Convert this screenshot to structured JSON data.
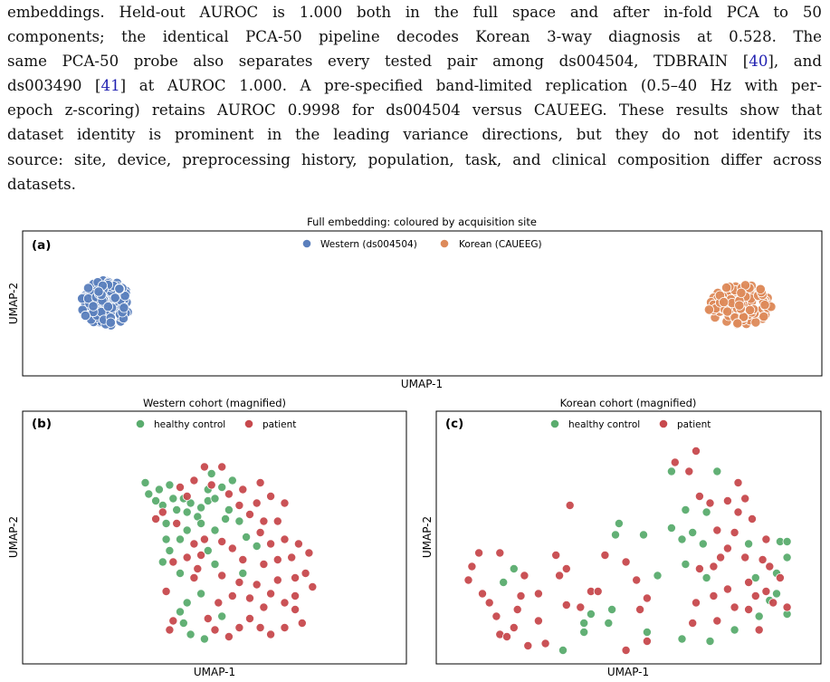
{
  "paragraph": {
    "lines": [
      [
        "embeddings.  Held-out AUROC is 1.000 both in the full space and after in-fold PCA to 50"
      ],
      [
        "components; the identical PCA-50 pipeline decodes Korean 3-way diagnosis at 0.528.  The"
      ],
      [
        "same PCA-50 probe also separates every tested pair among ds004504, TDBRAIN [",
        {
          "cite": "40"
        },
        "], and"
      ],
      [
        "ds003490 [",
        {
          "cite": "41"
        },
        "] at AUROC 1.000. A pre-specified band-limited replication (0.5–40 Hz with per-"
      ],
      [
        "epoch z-scoring) retains AUROC 0.9998 for ds004504 versus CAUEEG. These results show that"
      ],
      [
        "dataset identity is prominent in the leading variance directions, but they do not identify its"
      ],
      [
        "source: site, device, preprocessing history, population, task, and clinical composition differ across"
      ],
      [
        "datasets."
      ]
    ]
  },
  "colors": {
    "western": "#5b7fbd",
    "korean": "#dd8a5a",
    "healthy": "#5aac6e",
    "patient": "#c7494d"
  },
  "figure": {
    "panel_a": {
      "title": "Full embedding: coloured by acquisition site",
      "tag": "(a)",
      "xlabel": "UMAP-1",
      "ylabel": "UMAP-2",
      "legend": [
        "Western (ds004504)",
        "Korean (CAUEEG)"
      ]
    },
    "panel_b": {
      "title": "Western cohort (magnified)",
      "tag": "(b)",
      "xlabel": "UMAP-1",
      "ylabel": "UMAP-2",
      "legend": [
        "healthy control",
        "patient"
      ]
    },
    "panel_c": {
      "title": "Korean cohort (magnified)",
      "tag": "(c)",
      "xlabel": "UMAP-1",
      "ylabel": "UMAP-2",
      "legend": [
        "healthy control",
        "patient"
      ]
    }
  },
  "chart_data": [
    {
      "type": "scatter",
      "title": "Full embedding: coloured by acquisition site",
      "xlabel": "UMAP-1",
      "ylabel": "UMAP-2",
      "legend_position": "top-center",
      "grid": false,
      "xlim": [
        0,
        100
      ],
      "ylim": [
        0,
        100
      ],
      "series": [
        {
          "name": "Western (ds004504)",
          "color": "western",
          "center": [
            8,
            50
          ],
          "spread": [
            3.2,
            20
          ],
          "count": 140,
          "seed": 7
        },
        {
          "name": "Korean (CAUEEG)",
          "color": "korean",
          "center": [
            92,
            49
          ],
          "spread": [
            4.2,
            18
          ],
          "count": 140,
          "seed": 13
        }
      ]
    },
    {
      "type": "scatter",
      "title": "Western cohort (magnified)",
      "xlabel": "UMAP-1",
      "ylabel": "UMAP-2",
      "legend_position": "top-center",
      "grid": false,
      "xlim": [
        0,
        100
      ],
      "ylim": [
        0,
        100
      ],
      "series": [
        {
          "name": "healthy control",
          "color": "healthy",
          "points": [
            [
              49,
              82
            ],
            [
              55,
              79
            ],
            [
              30,
              78
            ],
            [
              34,
              75
            ],
            [
              37,
              77
            ],
            [
              31,
              73
            ],
            [
              33,
              70
            ],
            [
              38,
              71
            ],
            [
              35,
              68
            ],
            [
              39,
              66
            ],
            [
              41,
              71
            ],
            [
              43,
              69
            ],
            [
              42,
              65
            ],
            [
              46,
              67
            ],
            [
              45,
              63
            ],
            [
              48,
              70
            ],
            [
              48,
              75
            ],
            [
              52,
              76
            ],
            [
              50,
              71
            ],
            [
              54,
              66
            ],
            [
              53,
              62
            ],
            [
              46,
              60
            ],
            [
              50,
              57
            ],
            [
              42,
              57
            ],
            [
              40,
              53
            ],
            [
              36,
              60
            ],
            [
              36,
              53
            ],
            [
              37,
              48
            ],
            [
              35,
              43
            ],
            [
              40,
              38
            ],
            [
              48,
              48
            ],
            [
              50,
              42
            ],
            [
              46,
              29
            ],
            [
              42,
              25
            ],
            [
              40,
              21
            ],
            [
              41,
              16
            ],
            [
              43,
              11
            ],
            [
              47,
              9
            ],
            [
              52,
              19
            ],
            [
              57,
              61
            ],
            [
              59,
              54
            ],
            [
              62,
              50
            ],
            [
              58,
              38
            ]
          ]
        },
        {
          "name": "patient",
          "color": "patient",
          "points": [
            [
              47,
              85
            ],
            [
              52,
              85
            ],
            [
              44,
              79
            ],
            [
              49,
              77
            ],
            [
              54,
              73
            ],
            [
              58,
              75
            ],
            [
              63,
              78
            ],
            [
              66,
              72
            ],
            [
              70,
              69
            ],
            [
              62,
              69
            ],
            [
              57,
              68
            ],
            [
              60,
              64
            ],
            [
              64,
              61
            ],
            [
              68,
              61
            ],
            [
              63,
              56
            ],
            [
              66,
              51
            ],
            [
              70,
              53
            ],
            [
              74,
              51
            ],
            [
              77,
              47
            ],
            [
              72,
              45
            ],
            [
              68,
              44
            ],
            [
              64,
              42
            ],
            [
              58,
              44
            ],
            [
              55,
              49
            ],
            [
              52,
              52
            ],
            [
              47,
              53
            ],
            [
              44,
              51
            ],
            [
              42,
              45
            ],
            [
              38,
              43
            ],
            [
              45,
              40
            ],
            [
              52,
              37
            ],
            [
              57,
              34
            ],
            [
              62,
              33
            ],
            [
              68,
              35
            ],
            [
              73,
              36
            ],
            [
              76,
              38
            ],
            [
              78,
              32
            ],
            [
              73,
              28
            ],
            [
              70,
              25
            ],
            [
              73,
              22
            ],
            [
              75,
              16
            ],
            [
              70,
              14
            ],
            [
              66,
              11
            ],
            [
              63,
              14
            ],
            [
              60,
              18
            ],
            [
              57,
              14
            ],
            [
              54,
              10
            ],
            [
              50,
              13
            ],
            [
              48,
              18
            ],
            [
              51,
              25
            ],
            [
              55,
              28
            ],
            [
              60,
              27
            ],
            [
              64,
              23
            ],
            [
              66,
              29
            ],
            [
              44,
              36
            ],
            [
              46,
              46
            ],
            [
              36,
              30
            ],
            [
              38,
              17
            ],
            [
              37,
              13
            ],
            [
              42,
              72
            ],
            [
              40,
              76
            ],
            [
              35,
              65
            ],
            [
              33,
              62
            ],
            [
              39,
              60
            ]
          ]
        }
      ]
    },
    {
      "type": "scatter",
      "title": "Korean cohort (magnified)",
      "xlabel": "UMAP-1",
      "ylabel": "UMAP-2",
      "legend_position": "top-center",
      "grid": false,
      "xlim": [
        0,
        100
      ],
      "ylim": [
        0,
        100
      ],
      "series": [
        {
          "name": "healthy control",
          "color": "healthy",
          "points": [
            [
              62,
              83
            ],
            [
              75,
              83
            ],
            [
              66,
              66
            ],
            [
              72,
              65
            ],
            [
              46,
              55
            ],
            [
              47,
              60
            ],
            [
              54,
              55
            ],
            [
              62,
              58
            ],
            [
              65,
              53
            ],
            [
              68,
              56
            ],
            [
              71,
              51
            ],
            [
              84,
              51
            ],
            [
              93,
              52
            ],
            [
              95,
              52
            ],
            [
              95,
              45
            ],
            [
              72,
              36
            ],
            [
              86,
              36
            ],
            [
              92,
              38
            ],
            [
              92,
              29
            ],
            [
              95,
              20
            ],
            [
              90,
              26
            ],
            [
              87,
              19
            ],
            [
              80,
              13
            ],
            [
              73,
              8
            ],
            [
              65,
              9
            ],
            [
              55,
              12
            ],
            [
              44,
              16
            ],
            [
              37,
              16
            ],
            [
              31,
              4
            ],
            [
              17,
              40
            ],
            [
              14,
              34
            ],
            [
              37,
              12
            ],
            [
              39,
              20
            ],
            [
              45,
              22
            ],
            [
              58,
              37
            ],
            [
              66,
              42
            ]
          ]
        },
        {
          "name": "patient",
          "color": "patient",
          "points": [
            [
              69,
              92
            ],
            [
              67,
              83
            ],
            [
              63,
              87
            ],
            [
              81,
              78
            ],
            [
              78,
              70
            ],
            [
              70,
              72
            ],
            [
              73,
              69
            ],
            [
              83,
              71
            ],
            [
              81,
              65
            ],
            [
              85,
              62
            ],
            [
              89,
              53
            ],
            [
              80,
              56
            ],
            [
              75,
              57
            ],
            [
              78,
              49
            ],
            [
              76,
              45
            ],
            [
              74,
              41
            ],
            [
              70,
              40
            ],
            [
              83,
              45
            ],
            [
              88,
              44
            ],
            [
              90,
              41
            ],
            [
              93,
              36
            ],
            [
              84,
              34
            ],
            [
              89,
              30
            ],
            [
              86,
              28
            ],
            [
              78,
              31
            ],
            [
              74,
              28
            ],
            [
              69,
              25
            ],
            [
              68,
              16
            ],
            [
              75,
              17
            ],
            [
              84,
              22
            ],
            [
              80,
              23
            ],
            [
              91,
              25
            ],
            [
              95,
              23
            ],
            [
              87,
              13
            ],
            [
              33,
              68
            ],
            [
              43,
              46
            ],
            [
              49,
              43
            ],
            [
              52,
              35
            ],
            [
              55,
              27
            ],
            [
              53,
              22
            ],
            [
              29,
              46
            ],
            [
              32,
              40
            ],
            [
              30,
              37
            ],
            [
              39,
              30
            ],
            [
              36,
              23
            ],
            [
              32,
              24
            ],
            [
              24,
              29
            ],
            [
              19,
              28
            ],
            [
              18,
              22
            ],
            [
              17,
              14
            ],
            [
              24,
              17
            ],
            [
              26,
              7
            ],
            [
              21,
              6
            ],
            [
              10,
              25
            ],
            [
              12,
              19
            ],
            [
              8,
              29
            ],
            [
              4,
              35
            ],
            [
              5,
              41
            ],
            [
              7,
              47
            ],
            [
              13,
              47
            ],
            [
              20,
              37
            ],
            [
              13,
              11
            ],
            [
              15,
              10
            ],
            [
              55,
              8
            ],
            [
              49,
              4
            ],
            [
              41,
              30
            ]
          ]
        }
      ]
    }
  ]
}
